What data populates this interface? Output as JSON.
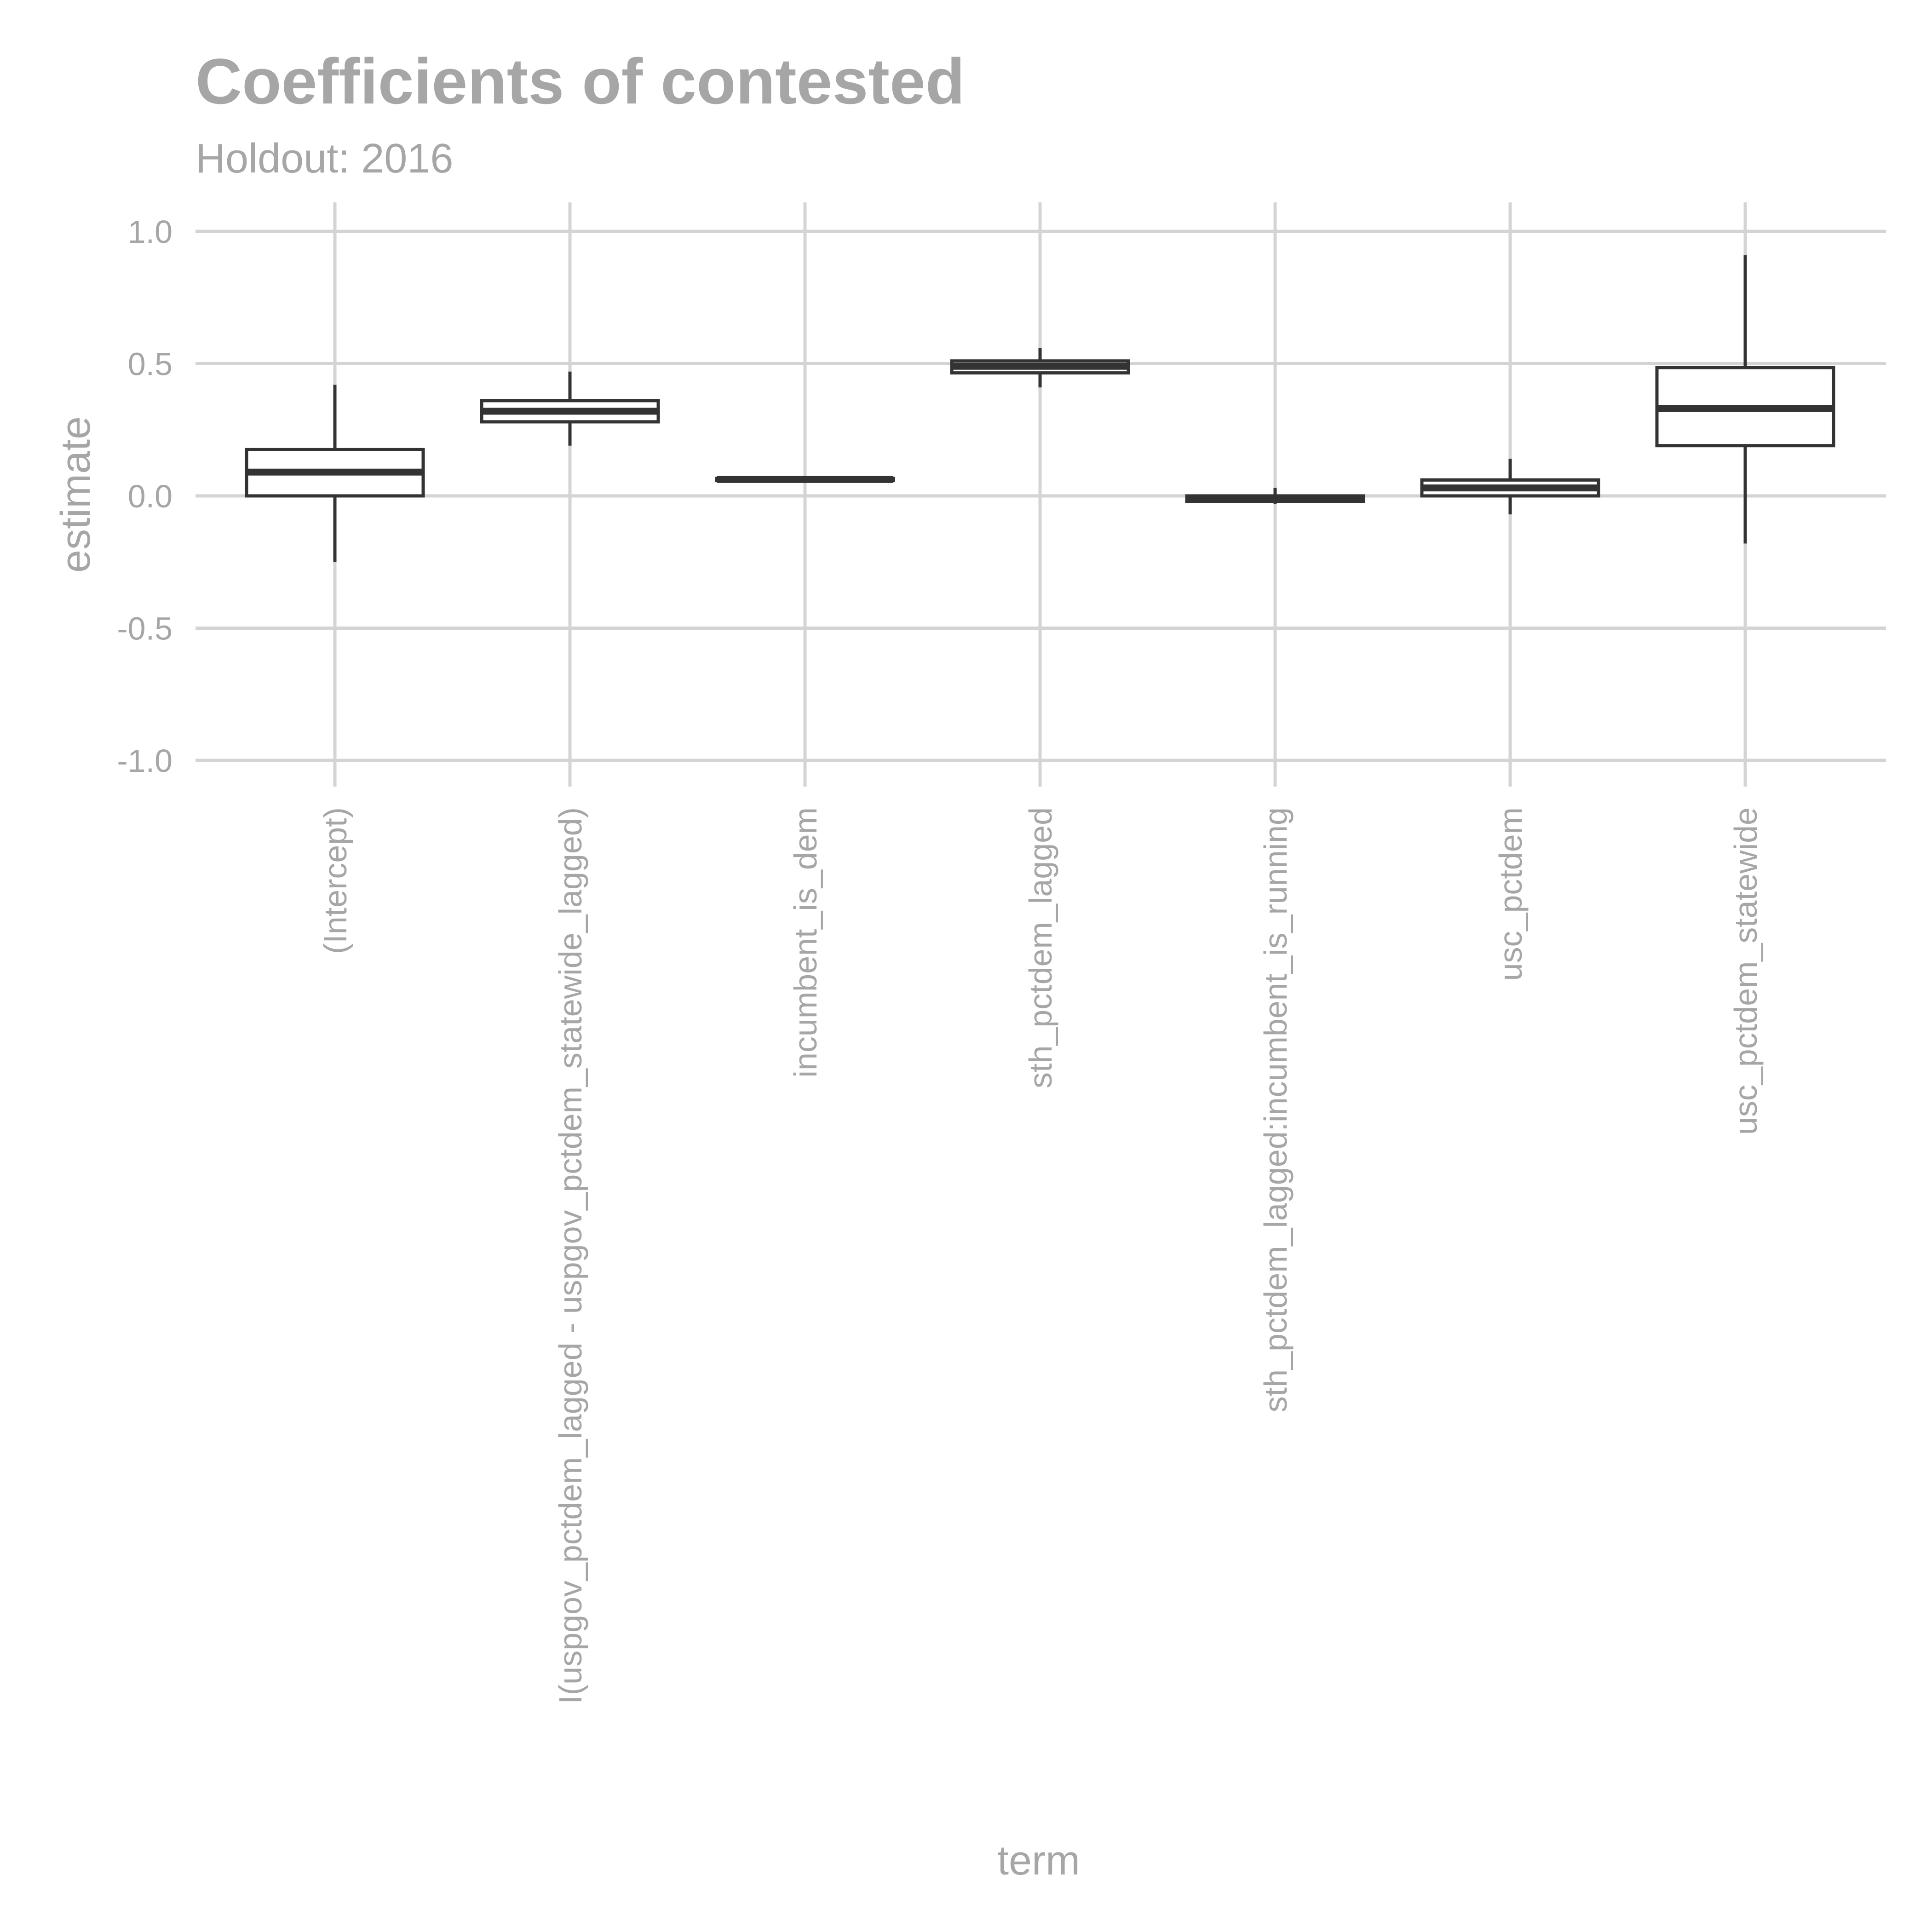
{
  "chart_data": {
    "type": "boxplot",
    "title": "Coefficients of contested",
    "subtitle": "Holdout: 2016",
    "xlabel": "term",
    "ylabel": "estimate",
    "ylim": [
      -1.0,
      1.0
    ],
    "y_ticks": [
      "-1.0",
      "-0.5",
      "0.0",
      "0.5",
      "1.0"
    ],
    "y_tick_values": [
      -1.0,
      -0.5,
      0.0,
      0.5,
      1.0
    ],
    "grid": true,
    "categories": [
      "(Intercept)",
      "I(uspgov_pctdem_lagged - uspgov_pctdem_statewide_lagged)",
      "incumbent_is_dem",
      "sth_pctdem_lagged",
      "sth_pctdem_lagged:incumbent_is_running",
      "usc_pctdem",
      "usc_pctdem_statewide"
    ],
    "boxes": [
      {
        "min": -0.25,
        "q1": 0.0,
        "median": 0.09,
        "q3": 0.175,
        "max": 0.42
      },
      {
        "min": 0.19,
        "q1": 0.28,
        "median": 0.32,
        "q3": 0.36,
        "max": 0.47
      },
      {
        "min": 0.058,
        "q1": 0.058,
        "median": 0.062,
        "q3": 0.066,
        "max": 0.066
      },
      {
        "min": 0.41,
        "q1": 0.465,
        "median": 0.49,
        "q3": 0.51,
        "max": 0.56
      },
      {
        "min": -0.03,
        "q1": -0.02,
        "median": -0.01,
        "q3": 0.0,
        "max": 0.03
      },
      {
        "min": -0.07,
        "q1": 0.0,
        "median": 0.03,
        "q3": 0.06,
        "max": 0.14
      },
      {
        "min": -0.18,
        "q1": 0.19,
        "median": 0.33,
        "q3": 0.485,
        "max": 0.91
      }
    ],
    "colors": {
      "box_stroke": "#333333",
      "grid": "#d4d4d4",
      "text": "#a6a6a6",
      "background": "#ffffff"
    }
  }
}
